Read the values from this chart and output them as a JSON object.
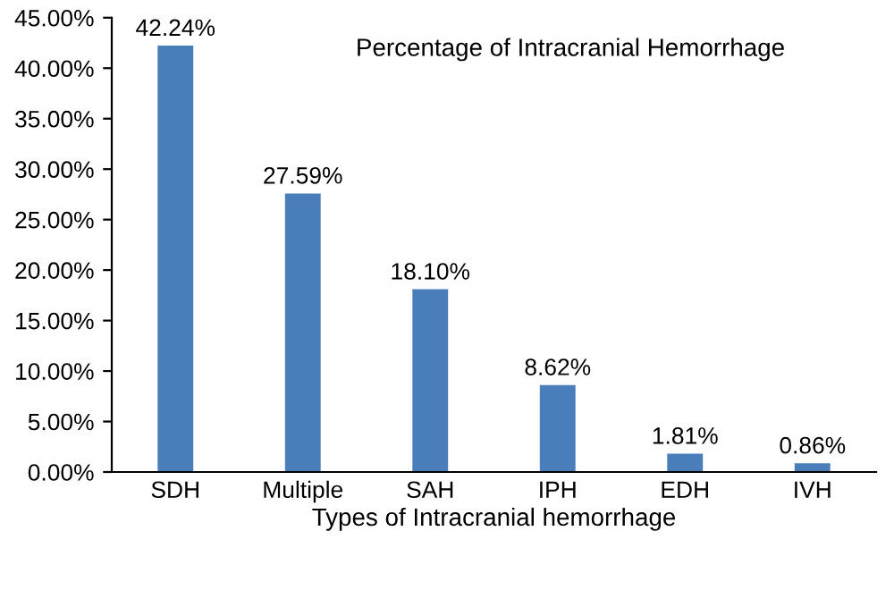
{
  "chart_data": {
    "type": "bar",
    "title": "Percentage of Intracranial Hemorrhage",
    "xlabel": "Types of Intracranial hemorrhage",
    "categories": [
      "SDH",
      "Multiple",
      "SAH",
      "IPH",
      "EDH",
      "IVH"
    ],
    "values": [
      42.24,
      27.59,
      18.1,
      8.62,
      1.81,
      0.86
    ],
    "value_labels": [
      "42.24%",
      "27.59%",
      "18.10%",
      "8.62%",
      "1.81%",
      "0.86%"
    ],
    "color": "#4a7ebb",
    "ylim": [
      0,
      45
    ],
    "yticks": [
      {
        "value": 0,
        "label": "0.00%"
      },
      {
        "value": 5,
        "label": "5.00%"
      },
      {
        "value": 10,
        "label": "10.00%"
      },
      {
        "value": 15,
        "label": "15.00%"
      },
      {
        "value": 20,
        "label": "20.00%"
      },
      {
        "value": 25,
        "label": "25.00%"
      },
      {
        "value": 30,
        "label": "30.00%"
      },
      {
        "value": 35,
        "label": "35.00%"
      },
      {
        "value": 40,
        "label": "40.00%"
      },
      {
        "value": 45,
        "label": "45.00%"
      }
    ],
    "grid": false,
    "legend": false
  }
}
